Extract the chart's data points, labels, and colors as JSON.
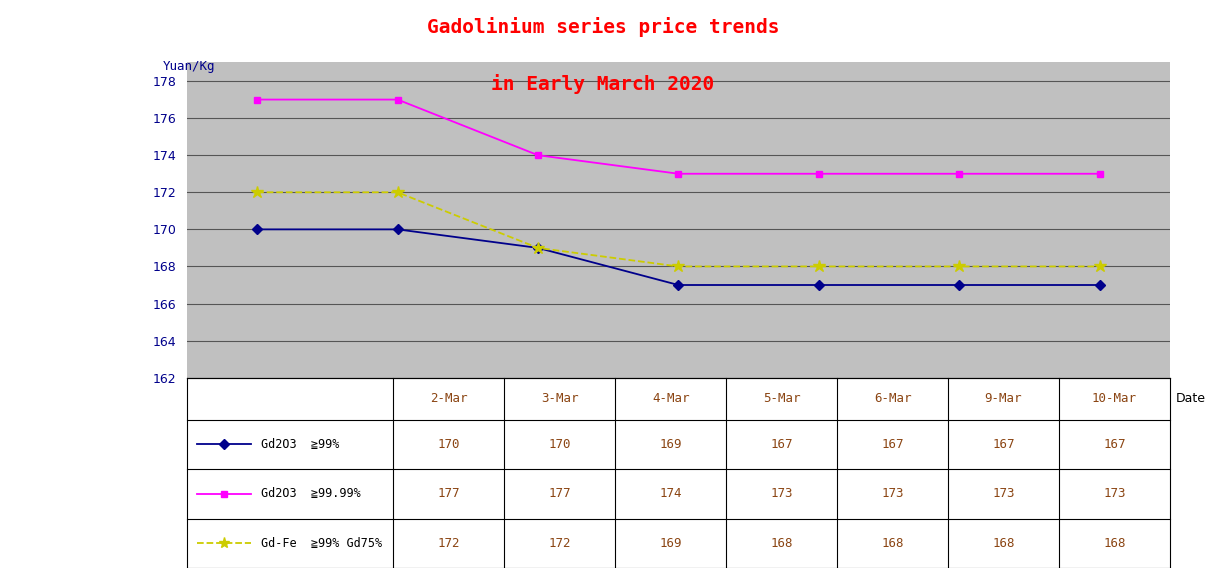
{
  "title_line1": "Gadolinium series price trends",
  "title_line2": "in Early March 2020",
  "title_color": "#FF0000",
  "ylabel": "Yuan/Kg",
  "xlabel": "Date",
  "dates": [
    "2-Mar",
    "3-Mar",
    "4-Mar",
    "5-Mar",
    "6-Mar",
    "9-Mar",
    "10-Mar"
  ],
  "series": [
    {
      "label": "Gd2O3  ≧99%",
      "values": [
        170,
        170,
        169,
        167,
        167,
        167,
        167
      ],
      "color": "#00008B",
      "marker": "D",
      "linestyle": "-"
    },
    {
      "label": "Gd2O3  ≧99.99%",
      "values": [
        177,
        177,
        174,
        173,
        173,
        173,
        173
      ],
      "color": "#FF00FF",
      "marker": "s",
      "linestyle": "-"
    },
    {
      "label": "Gd-Fe  ≧99% Gd75%",
      "values": [
        172,
        172,
        169,
        168,
        168,
        168,
        168
      ],
      "color": "#CCCC00",
      "marker": "*",
      "linestyle": "--"
    }
  ],
  "ylim": [
    162,
    179
  ],
  "yticks": [
    162,
    164,
    166,
    168,
    170,
    172,
    174,
    176,
    178
  ],
  "plot_bg_color": "#C0C0C0",
  "fig_bg_color": "#FFFFFF",
  "grid_color": "#555555",
  "table_values": [
    [
      "170",
      "170",
      "169",
      "167",
      "167",
      "167",
      "167"
    ],
    [
      "177",
      "177",
      "174",
      "173",
      "173",
      "173",
      "173"
    ],
    [
      "172",
      "172",
      "169",
      "168",
      "168",
      "168",
      "168"
    ]
  ],
  "table_row_labels": [
    "Gd2O3  ≧99%",
    "Gd2O3  ≧99.99%",
    "Gd-Fe  ≧99% Gd75%"
  ],
  "table_row_colors": [
    "#00008B",
    "#FF00FF",
    "#CCCC00"
  ],
  "value_text_color": "#8B4513",
  "date_text_color": "#8B4513"
}
